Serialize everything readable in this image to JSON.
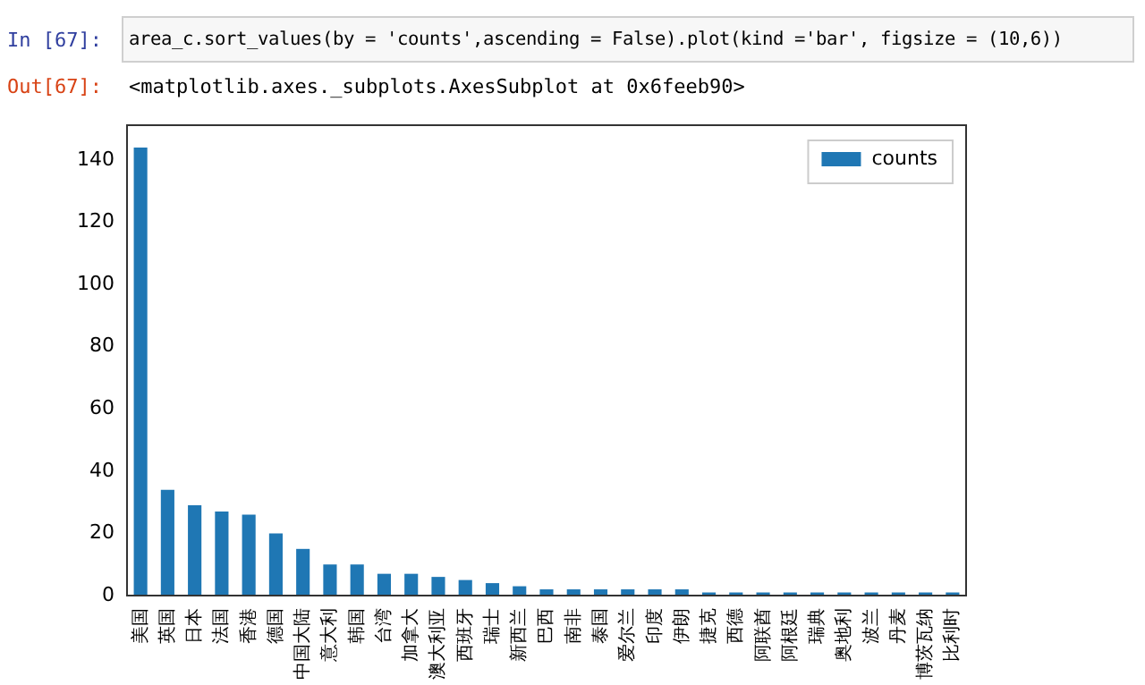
{
  "chart_data": {
    "type": "bar",
    "annotations": [
      "In [67]:",
      "area_c.sort_values(by = 'counts',ascending = False).plot(kind ='bar', figsize = (10,6))",
      "Out[67]:",
      "<matplotlib.axes._subplots.AxesSubplot at 0x6feeb90>"
    ],
    "categories": [
      "美国",
      "英国",
      "日本",
      "法国",
      "香港",
      "德国",
      "中国大陆",
      "意大利",
      "韩国",
      "台湾",
      "加拿大",
      "澳大利亚",
      "西班牙",
      "瑞士",
      "新西兰",
      "巴西",
      "南非",
      "泰国",
      "爱尔兰",
      "印度",
      "伊朗",
      "捷克",
      "西德",
      "阿联酋",
      "阿根廷",
      "瑞典",
      "奥地利",
      "波兰",
      "丹麦",
      "博茨瓦纳",
      "比利时"
    ],
    "series": [
      {
        "name": "counts",
        "color": "#1f77b4",
        "values": [
          144,
          34,
          29,
          27,
          26,
          20,
          15,
          10,
          10,
          7,
          7,
          6,
          5,
          4,
          3,
          2,
          2,
          2,
          2,
          2,
          2,
          1,
          1,
          1,
          1,
          1,
          1,
          1,
          1,
          1,
          1
        ]
      }
    ],
    "ylim": [
      0,
      151.2
    ],
    "yticks": [
      0,
      20,
      40,
      60,
      80,
      100,
      120,
      140
    ],
    "grid": false,
    "legend": "top right"
  }
}
